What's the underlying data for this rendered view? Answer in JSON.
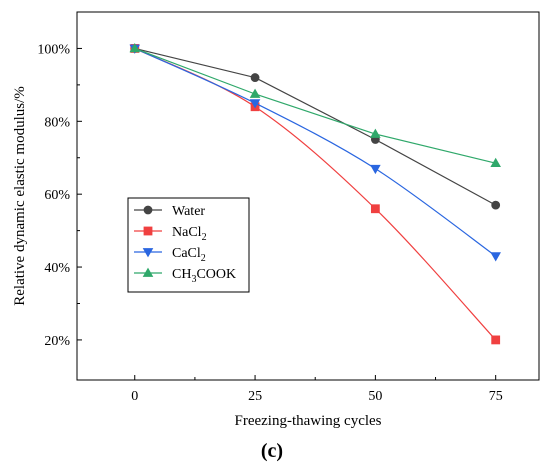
{
  "chart_data": {
    "type": "line",
    "x": [
      0,
      25,
      50,
      75
    ],
    "xticks": [
      "0",
      "25",
      "50",
      "75"
    ],
    "xlim": [
      -12,
      84
    ],
    "xlabel": "Freezing-thawing cycles",
    "ylabel": "Relative dynamic elastic modulus/%",
    "ylim": [
      9,
      110
    ],
    "yticks": [
      20,
      40,
      60,
      80,
      100
    ],
    "ytick_suffix": "%",
    "grid": false,
    "legend_placement": "lower-left",
    "caption": "(c)",
    "series": [
      {
        "name": "Water",
        "name_main": "Water",
        "name_sub": "",
        "name_tail": "",
        "values": [
          100,
          92,
          75,
          57
        ],
        "color": "#444444",
        "marker": "circle",
        "curve": false
      },
      {
        "name": "NaCl2",
        "name_main": "NaCl",
        "name_sub": "2",
        "name_tail": "",
        "values": [
          100,
          84,
          56,
          20
        ],
        "color": "#f04040",
        "marker": "square",
        "curve": true
      },
      {
        "name": "CaCl2",
        "name_main": "CaCl",
        "name_sub": "2",
        "name_tail": "",
        "values": [
          100,
          85,
          67,
          43
        ],
        "color": "#2a66e0",
        "marker": "triangle-down",
        "curve": true
      },
      {
        "name": "CH3COOK",
        "name_main": "CH",
        "name_sub": "3",
        "name_tail": "COOK",
        "values": [
          100,
          87.5,
          76.5,
          68.5
        ],
        "color": "#2fa86a",
        "marker": "triangle-up",
        "curve": false
      }
    ]
  }
}
